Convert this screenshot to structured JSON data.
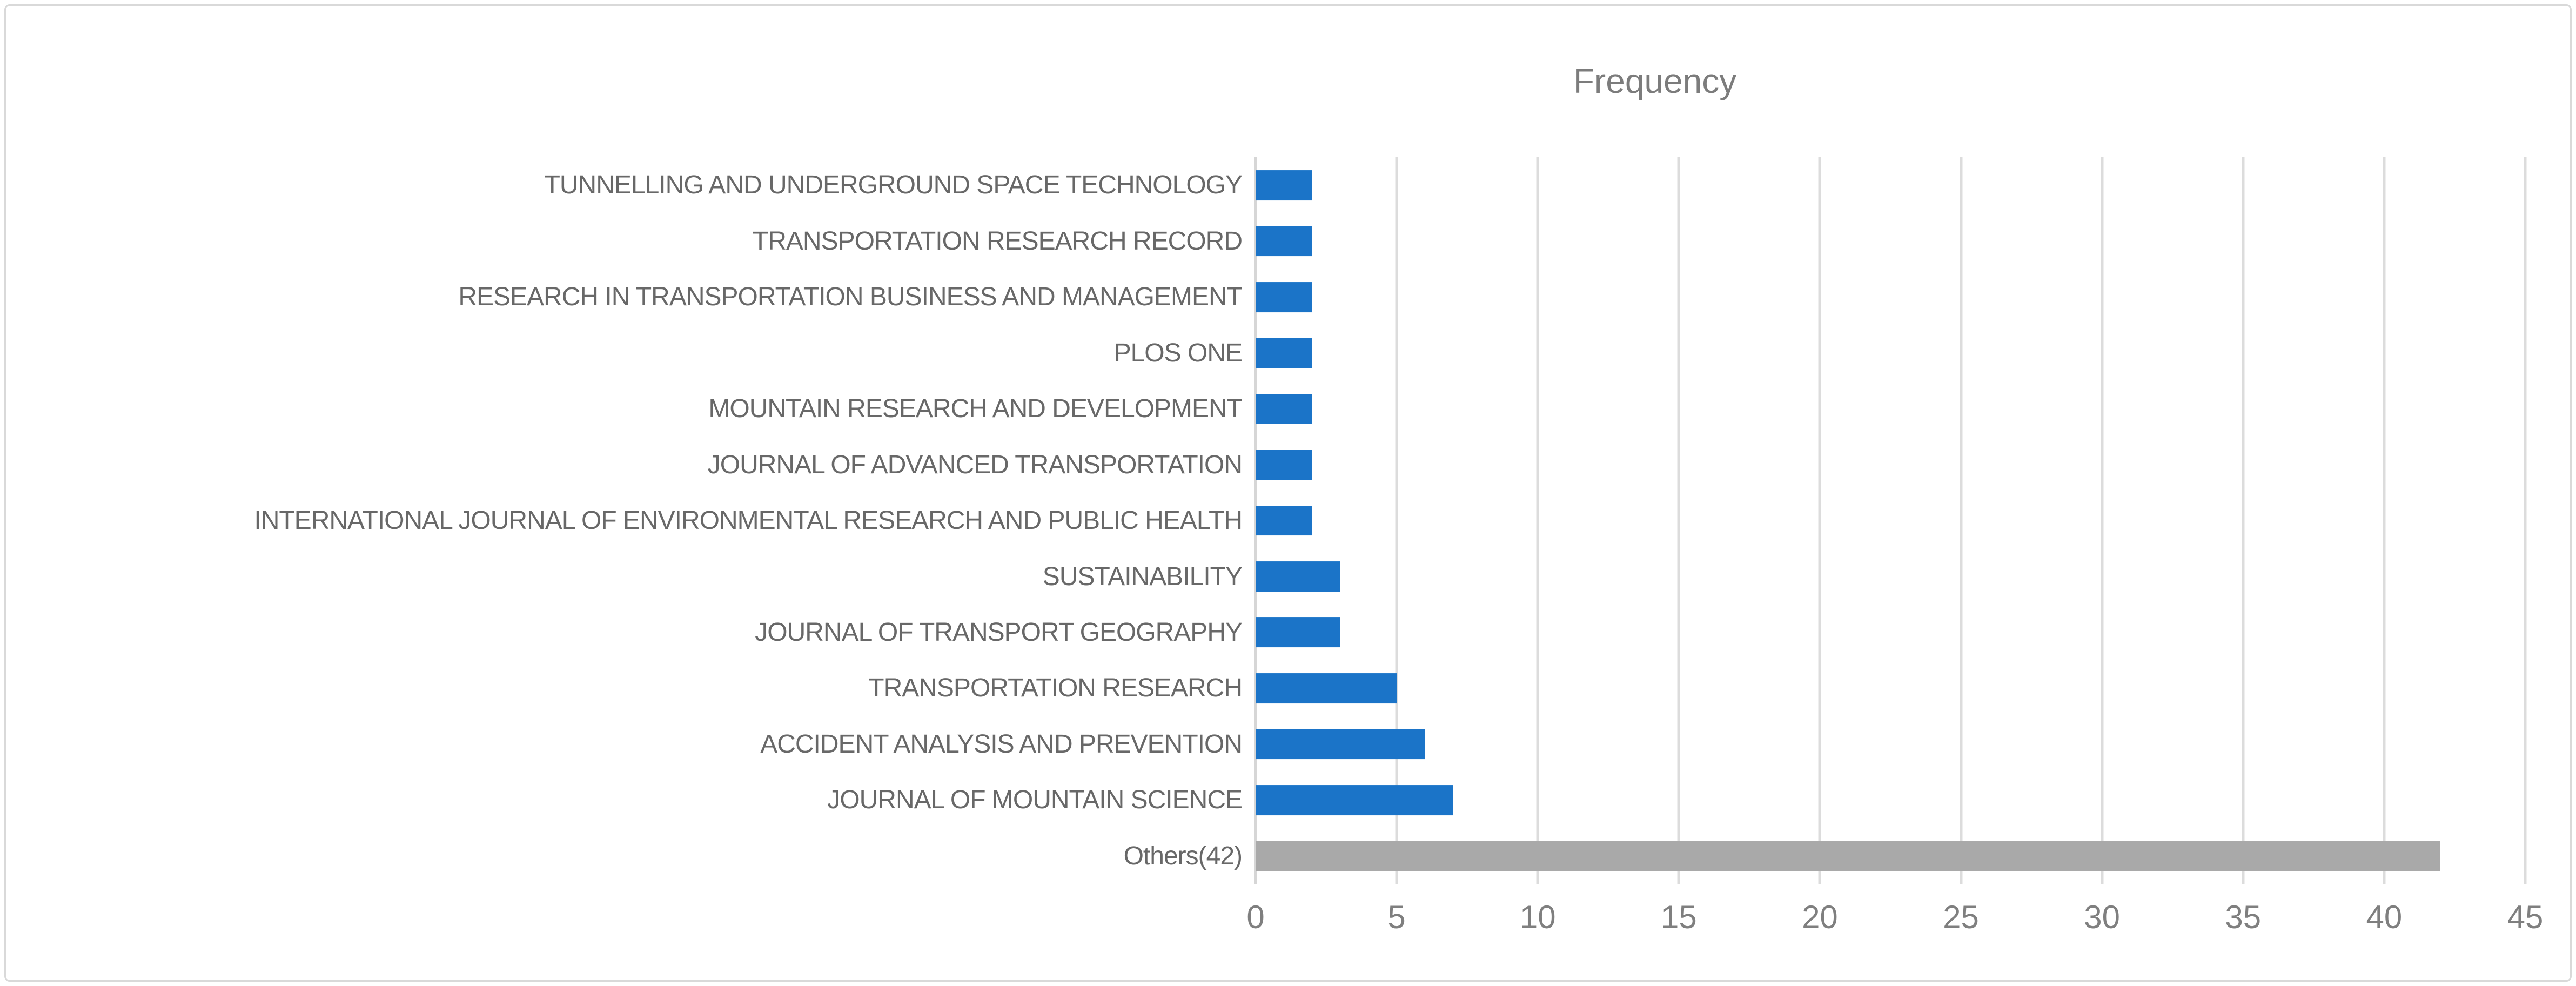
{
  "chart_data": {
    "type": "bar",
    "orientation": "horizontal",
    "title": "Frequency",
    "categories": [
      "TUNNELLING AND UNDERGROUND SPACE TECHNOLOGY",
      "TRANSPORTATION RESEARCH RECORD",
      "RESEARCH IN TRANSPORTATION BUSINESS AND MANAGEMENT",
      "PLOS ONE",
      "MOUNTAIN RESEARCH AND DEVELOPMENT",
      "JOURNAL OF ADVANCED TRANSPORTATION",
      "INTERNATIONAL JOURNAL OF ENVIRONMENTAL RESEARCH AND PUBLIC HEALTH",
      "SUSTAINABILITY",
      "JOURNAL OF TRANSPORT GEOGRAPHY",
      "TRANSPORTATION RESEARCH",
      "ACCIDENT ANALYSIS AND PREVENTION",
      "JOURNAL OF MOUNTAIN SCIENCE",
      "Others(42)"
    ],
    "values": [
      2,
      2,
      2,
      2,
      2,
      2,
      2,
      3,
      3,
      5,
      6,
      7,
      42
    ],
    "xlabel": "",
    "ylabel": "",
    "xlim": [
      0,
      45
    ],
    "xticks": [
      0,
      5,
      10,
      15,
      20,
      25,
      30,
      35,
      40,
      45
    ],
    "grid": "vertical-on",
    "legend": "none",
    "colors": {
      "bar_default": "#1b74c8",
      "bar_others": "#a9a9a9",
      "gridline": "#dcdcdc",
      "axis_line": "#d6d6d6",
      "title_text": "#7c7c7c",
      "label_text": "#686868",
      "tick_text": "#7f7f7f",
      "frame_border": "#d9d9d9",
      "background": "#ffffff"
    }
  }
}
